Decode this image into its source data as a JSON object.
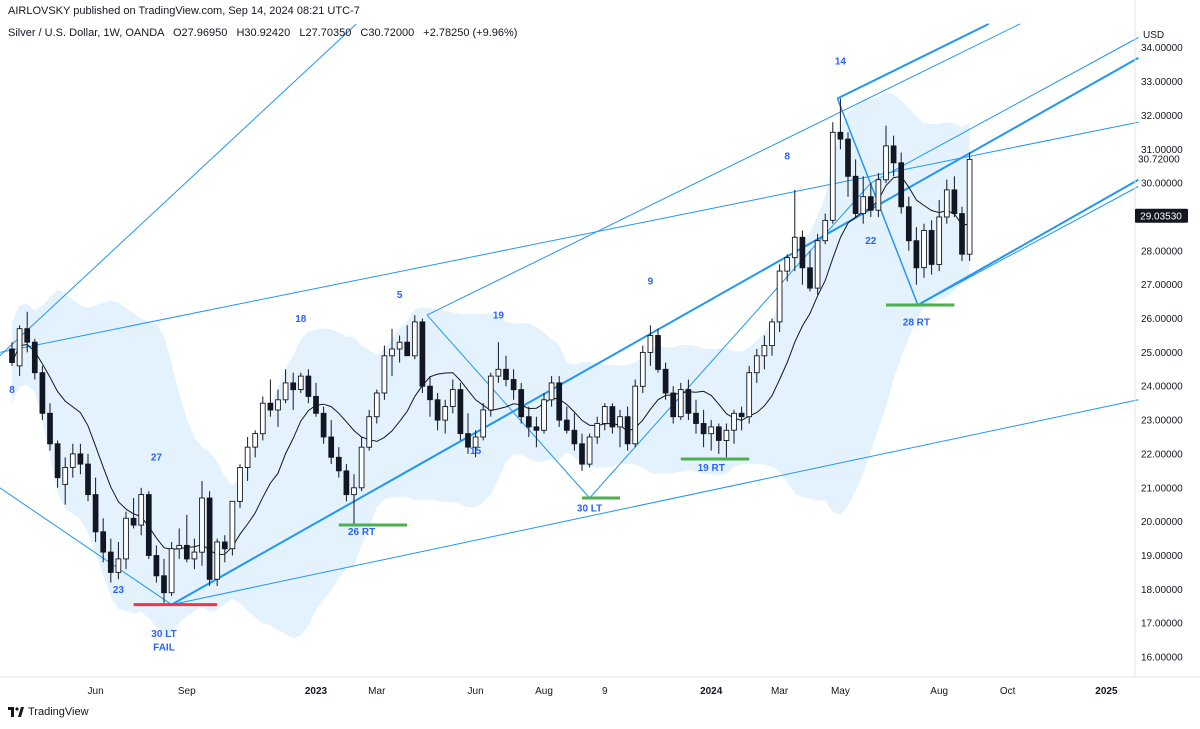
{
  "publisher_line": "AIRLOVSKY published on TradingView.com, Sep 14, 2024 08:21 UTC-7",
  "footer": {
    "brand": "TradingView",
    "logo_icon": "tradingview-logo-icon"
  },
  "chart_data": {
    "type": "candlestick",
    "header": {
      "symbol_line": "Silver / U.S. Dollar, 1W, OANDA",
      "open": "O27.96950",
      "high": "H30.92420",
      "low": "L27.70350",
      "close": "C30.72000",
      "change": "+2.78250 (+9.96%)"
    },
    "currency": "USD",
    "y_range": [
      15.5,
      34.7
    ],
    "y_ticks": [
      "34.00000",
      "33.00000",
      "32.00000",
      "31.00000",
      "30.00000",
      "28.00000",
      "27.00000",
      "26.00000",
      "25.00000",
      "24.00000",
      "23.00000",
      "22.00000",
      "21.00000",
      "20.00000",
      "19.00000",
      "18.00000",
      "17.00000",
      "16.00000"
    ],
    "y_tick_values": [
      34,
      33,
      32,
      31,
      30,
      28,
      27,
      26,
      25,
      24,
      23,
      22,
      21,
      20,
      19,
      18,
      17,
      16
    ],
    "last_price": {
      "label": "30.72000",
      "value": 30.72
    },
    "crosshair_price": {
      "label": "29.03530",
      "value": 29.0353,
      "bg": "#131722"
    },
    "x_labels": [
      {
        "label": "Jun",
        "bar": 11,
        "bold": false
      },
      {
        "label": "Sep",
        "bar": 23,
        "bold": false
      },
      {
        "label": "2023",
        "bar": 40,
        "bold": true
      },
      {
        "label": "Mar",
        "bar": 48,
        "bold": false
      },
      {
        "label": "Jun",
        "bar": 61,
        "bold": false
      },
      {
        "label": "Aug",
        "bar": 70,
        "bold": false
      },
      {
        "label": "9",
        "bar": 78,
        "bold": false
      },
      {
        "label": "2024",
        "bar": 92,
        "bold": true
      },
      {
        "label": "Mar",
        "bar": 101,
        "bold": false
      },
      {
        "label": "May",
        "bar": 109,
        "bold": false
      },
      {
        "label": "Aug",
        "bar": 122,
        "bold": false
      },
      {
        "label": "Oct",
        "bar": 131,
        "bold": false
      },
      {
        "label": "2025",
        "bar": 144,
        "bold": true
      }
    ],
    "bar_x0": 12,
    "bar_step": 7.6,
    "candles": [
      [
        25.1,
        25.3,
        24.6,
        24.7
      ],
      [
        24.6,
        25.8,
        24.3,
        25.7
      ],
      [
        25.7,
        26.2,
        25.0,
        25.3
      ],
      [
        25.3,
        25.4,
        24.2,
        24.4
      ],
      [
        24.4,
        24.6,
        23.0,
        23.2
      ],
      [
        23.2,
        23.5,
        22.1,
        22.3
      ],
      [
        22.3,
        22.4,
        21.0,
        21.3
      ],
      [
        21.1,
        21.9,
        20.5,
        21.6
      ],
      [
        21.6,
        22.3,
        21.3,
        22.0
      ],
      [
        22.0,
        22.3,
        21.4,
        21.7
      ],
      [
        21.7,
        22.0,
        20.6,
        20.8
      ],
      [
        20.8,
        21.3,
        19.4,
        19.7
      ],
      [
        19.7,
        20.1,
        18.8,
        19.1
      ],
      [
        19.1,
        19.5,
        18.2,
        18.5
      ],
      [
        18.5,
        19.4,
        18.3,
        18.9
      ],
      [
        18.9,
        20.3,
        18.6,
        20.1
      ],
      [
        20.1,
        20.7,
        19.8,
        19.9
      ],
      [
        19.9,
        21.0,
        19.6,
        20.8
      ],
      [
        20.8,
        20.9,
        18.9,
        19.0
      ],
      [
        19.0,
        19.3,
        18.2,
        18.4
      ],
      [
        18.4,
        18.9,
        17.6,
        17.9
      ],
      [
        17.9,
        19.4,
        17.8,
        19.2
      ],
      [
        19.2,
        19.8,
        18.9,
        19.3
      ],
      [
        19.3,
        20.2,
        18.8,
        18.9
      ],
      [
        18.9,
        19.5,
        18.6,
        19.1
      ],
      [
        19.1,
        21.2,
        18.7,
        20.7
      ],
      [
        20.7,
        20.9,
        18.1,
        18.3
      ],
      [
        18.3,
        19.5,
        18.1,
        19.4
      ],
      [
        19.4,
        19.6,
        18.8,
        19.2
      ],
      [
        19.2,
        20.6,
        19.0,
        20.6
      ],
      [
        20.6,
        21.7,
        20.4,
        21.6
      ],
      [
        21.6,
        22.5,
        21.2,
        22.2
      ],
      [
        22.2,
        22.7,
        21.9,
        22.6
      ],
      [
        22.6,
        23.7,
        22.4,
        23.5
      ],
      [
        23.5,
        24.2,
        23.1,
        23.3
      ],
      [
        23.3,
        23.9,
        22.8,
        23.6
      ],
      [
        23.6,
        24.5,
        23.5,
        24.1
      ],
      [
        24.1,
        24.4,
        23.3,
        23.9
      ],
      [
        23.9,
        24.4,
        23.8,
        24.3
      ],
      [
        24.3,
        24.5,
        23.5,
        23.7
      ],
      [
        23.7,
        24.1,
        23.1,
        23.2
      ],
      [
        23.2,
        23.4,
        22.3,
        22.5
      ],
      [
        22.5,
        23.0,
        21.7,
        21.9
      ],
      [
        21.9,
        22.2,
        21.3,
        21.5
      ],
      [
        21.5,
        21.7,
        20.6,
        20.8
      ],
      [
        20.8,
        21.4,
        19.9,
        21.0
      ],
      [
        21.0,
        22.5,
        20.9,
        22.2
      ],
      [
        22.2,
        23.3,
        22.1,
        23.1
      ],
      [
        23.1,
        23.9,
        22.9,
        23.8
      ],
      [
        23.8,
        25.2,
        23.6,
        24.9
      ],
      [
        24.9,
        25.7,
        24.3,
        25.1
      ],
      [
        25.1,
        25.5,
        24.7,
        25.3
      ],
      [
        25.3,
        25.8,
        24.9,
        24.9
      ],
      [
        24.9,
        26.1,
        24.8,
        25.9
      ],
      [
        25.9,
        26.0,
        23.8,
        24.0
      ],
      [
        24.0,
        24.3,
        23.1,
        23.6
      ],
      [
        23.6,
        23.8,
        22.7,
        23.0
      ],
      [
        23.0,
        23.6,
        22.6,
        23.4
      ],
      [
        23.4,
        24.2,
        23.2,
        23.9
      ],
      [
        23.9,
        24.1,
        22.4,
        22.6
      ],
      [
        22.6,
        23.2,
        22.0,
        22.2
      ],
      [
        22.2,
        22.7,
        21.9,
        22.5
      ],
      [
        22.5,
        23.5,
        22.4,
        23.3
      ],
      [
        23.3,
        24.4,
        23.1,
        24.3
      ],
      [
        24.3,
        25.3,
        24.1,
        24.5
      ],
      [
        24.5,
        24.9,
        24.0,
        24.2
      ],
      [
        24.2,
        24.5,
        23.6,
        23.9
      ],
      [
        23.9,
        24.1,
        22.9,
        23.1
      ],
      [
        23.1,
        23.4,
        22.5,
        22.8
      ],
      [
        22.8,
        23.1,
        22.2,
        22.7
      ],
      [
        22.7,
        23.8,
        22.6,
        23.6
      ],
      [
        23.6,
        24.3,
        23.4,
        24.1
      ],
      [
        24.1,
        24.3,
        22.8,
        23.0
      ],
      [
        23.0,
        23.4,
        22.6,
        22.7
      ],
      [
        22.7,
        23.2,
        22.1,
        22.3
      ],
      [
        22.3,
        22.6,
        21.5,
        21.7
      ],
      [
        21.7,
        22.6,
        21.6,
        22.5
      ],
      [
        22.5,
        23.1,
        22.3,
        22.9
      ],
      [
        22.9,
        23.5,
        22.7,
        23.4
      ],
      [
        23.4,
        23.5,
        22.6,
        22.8
      ],
      [
        22.8,
        23.3,
        22.2,
        23.1
      ],
      [
        23.1,
        23.4,
        22.1,
        22.3
      ],
      [
        22.3,
        24.2,
        22.2,
        24.0
      ],
      [
        24.0,
        25.2,
        23.8,
        25.0
      ],
      [
        25.0,
        25.8,
        24.6,
        25.5
      ],
      [
        25.5,
        25.7,
        24.4,
        24.5
      ],
      [
        24.5,
        24.7,
        23.6,
        23.8
      ],
      [
        23.8,
        24.0,
        22.9,
        23.1
      ],
      [
        23.1,
        24.1,
        23.0,
        23.9
      ],
      [
        23.9,
        24.2,
        23.0,
        23.2
      ],
      [
        23.2,
        23.6,
        22.6,
        22.9
      ],
      [
        22.9,
        23.3,
        22.2,
        22.6
      ],
      [
        22.6,
        23.0,
        22.1,
        22.8
      ],
      [
        22.8,
        22.9,
        22.0,
        22.4
      ],
      [
        22.4,
        22.9,
        21.9,
        22.7
      ],
      [
        22.7,
        23.3,
        22.3,
        23.2
      ],
      [
        23.2,
        23.4,
        22.7,
        23.1
      ],
      [
        23.1,
        24.6,
        22.9,
        24.4
      ],
      [
        24.4,
        25.1,
        24.1,
        24.9
      ],
      [
        24.9,
        25.5,
        24.5,
        25.2
      ],
      [
        25.2,
        26.0,
        24.9,
        25.9
      ],
      [
        25.9,
        27.6,
        25.6,
        27.4
      ],
      [
        27.4,
        27.9,
        27.1,
        27.8
      ],
      [
        27.8,
        29.8,
        27.4,
        28.4
      ],
      [
        28.4,
        28.6,
        27.0,
        27.5
      ],
      [
        27.5,
        28.0,
        26.8,
        26.9
      ],
      [
        26.9,
        28.5,
        26.7,
        28.3
      ],
      [
        28.3,
        29.1,
        28.2,
        28.9
      ],
      [
        28.9,
        31.8,
        28.8,
        31.5
      ],
      [
        31.5,
        32.5,
        31.0,
        31.3
      ],
      [
        31.3,
        31.5,
        29.6,
        30.2
      ],
      [
        30.2,
        30.7,
        29.0,
        29.1
      ],
      [
        29.1,
        30.2,
        28.8,
        29.6
      ],
      [
        29.6,
        30.0,
        29.0,
        29.2
      ],
      [
        29.2,
        30.3,
        29.0,
        30.1
      ],
      [
        30.1,
        31.7,
        30.0,
        31.1
      ],
      [
        31.1,
        31.4,
        30.2,
        30.6
      ],
      [
        30.6,
        30.9,
        29.1,
        29.3
      ],
      [
        29.3,
        29.6,
        28.0,
        28.3
      ],
      [
        28.3,
        28.7,
        27.0,
        27.5
      ],
      [
        27.5,
        28.8,
        27.2,
        28.6
      ],
      [
        28.6,
        28.9,
        27.3,
        27.6
      ],
      [
        27.6,
        29.5,
        27.4,
        29.0
      ],
      [
        29.0,
        30.1,
        28.8,
        29.8
      ],
      [
        29.8,
        30.2,
        29.0,
        29.1
      ],
      [
        29.1,
        29.3,
        27.7,
        27.9
      ],
      [
        27.9,
        30.9,
        27.7,
        30.7
      ]
    ],
    "sma_color": "#131722",
    "channel_color": "#2196f3",
    "band_color": "#e3f2fd",
    "annotations": [
      {
        "text": "14",
        "bar": 109,
        "price": 33.5,
        "color": "#2962ff"
      },
      {
        "text": "8",
        "bar": 102,
        "price": 30.7,
        "color": "#2962ff"
      },
      {
        "text": "22",
        "bar": 113,
        "price": 28.2,
        "color": "#2962ff"
      },
      {
        "text": "9",
        "bar": 84,
        "price": 27.0,
        "color": "#2962ff"
      },
      {
        "text": "5",
        "bar": 51,
        "price": 26.6,
        "color": "#2962ff"
      },
      {
        "text": "18",
        "bar": 38,
        "price": 25.9,
        "color": "#2962ff"
      },
      {
        "text": "19",
        "bar": 64,
        "price": 26.0,
        "color": "#2962ff"
      },
      {
        "text": "8",
        "bar": 0,
        "price": 23.8,
        "color": "#2962ff"
      },
      {
        "text": "27",
        "bar": 19,
        "price": 21.8,
        "color": "#2962ff"
      },
      {
        "text": "15",
        "bar": 61,
        "price": 22.0,
        "color": "#2962ff"
      },
      {
        "text": "23",
        "bar": 14,
        "price": 17.9,
        "color": "#2962ff"
      },
      {
        "text": "28 RT",
        "bar": 119,
        "price": 25.8,
        "color": "#2962ff"
      },
      {
        "text": "19 RT",
        "bar": 92,
        "price": 21.5,
        "color": "#2962ff"
      },
      {
        "text": "30 LT",
        "bar": 76,
        "price": 20.3,
        "color": "#2962ff"
      },
      {
        "text": "26  RT",
        "bar": 46,
        "price": 19.6,
        "color": "#2962ff"
      },
      {
        "text": "30 LT",
        "bar": 20,
        "price": 16.6,
        "color": "#2962ff"
      },
      {
        "text": "FAIL",
        "bar": 20,
        "price": 16.2,
        "color": "#2962ff"
      }
    ],
    "support_marks": [
      {
        "from": 16,
        "to": 27,
        "price": 17.55,
        "color": "#f23645"
      },
      {
        "from": 43,
        "to": 52,
        "price": 19.9,
        "color": "#4caf50"
      },
      {
        "from": 75,
        "to": 80,
        "price": 20.7,
        "color": "#4caf50"
      },
      {
        "from": 88,
        "to": 97,
        "price": 21.85,
        "color": "#4caf50"
      },
      {
        "from": 115,
        "to": 124,
        "price": 26.4,
        "color": "#4caf50"
      }
    ]
  }
}
